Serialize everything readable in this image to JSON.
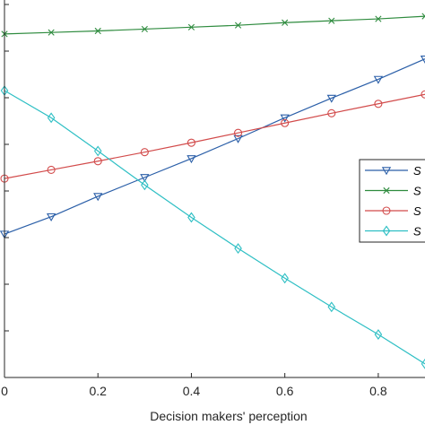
{
  "chart_data": {
    "type": "line",
    "title": "",
    "xlabel": "Decision makers' perception",
    "ylabel": "",
    "xlim": [
      0,
      0.9
    ],
    "ylim": [
      0,
      1
    ],
    "x_ticks": [
      "0",
      "0.2",
      "0.4",
      "0.6",
      "0.8"
    ],
    "x_tick_values": [
      0,
      0.2,
      0.4,
      0.6,
      0.8
    ],
    "grid": false,
    "legend_position": "right",
    "x": [
      0,
      0.1,
      0.2,
      0.3,
      0.4,
      0.5,
      0.6,
      0.7,
      0.8,
      0.9
    ],
    "series": [
      {
        "name": "S",
        "marker": "triangle-down",
        "color": "#2b5fa8",
        "values": [
          0.38,
          0.426,
          0.48,
          0.53,
          0.58,
          0.633,
          0.688,
          0.74,
          0.79,
          0.844
        ]
      },
      {
        "name": "S",
        "marker": "x",
        "color": "#2e8b3e",
        "values": [
          0.91,
          0.914,
          0.918,
          0.923,
          0.928,
          0.933,
          0.94,
          0.945,
          0.95,
          0.957
        ]
      },
      {
        "name": "S",
        "marker": "circle",
        "color": "#d24b4b",
        "values": [
          0.527,
          0.55,
          0.573,
          0.597,
          0.622,
          0.648,
          0.674,
          0.7,
          0.725,
          0.75
        ]
      },
      {
        "name": "S",
        "marker": "diamond",
        "color": "#2ebfc4",
        "values": [
          0.76,
          0.688,
          0.6,
          0.51,
          0.424,
          0.342,
          0.263,
          0.187,
          0.114,
          0.036
        ]
      }
    ]
  }
}
